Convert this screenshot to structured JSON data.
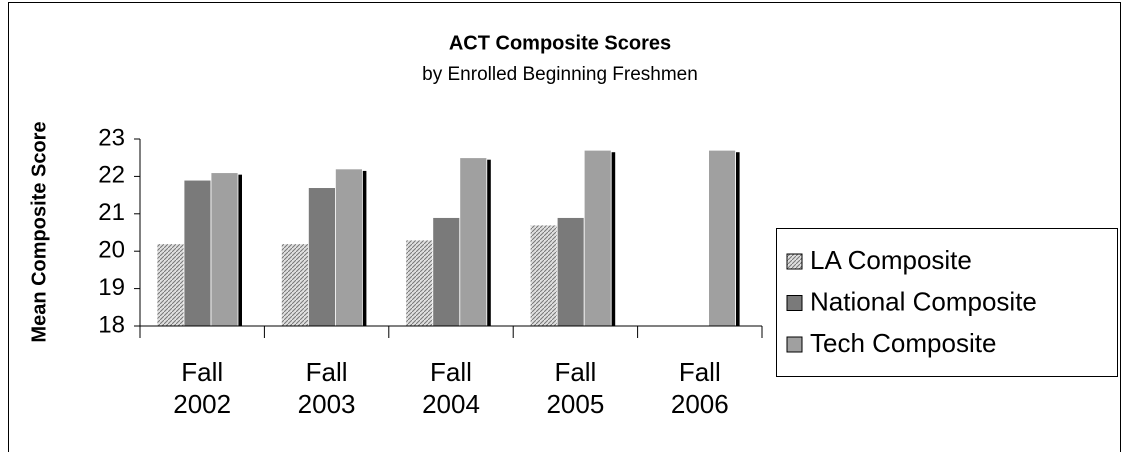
{
  "chart_data": {
    "type": "bar",
    "title": "ACT Composite Scores",
    "subtitle": "by Enrolled Beginning Freshmen",
    "y_label": "Mean Composite Score",
    "categories": [
      "Fall 2002",
      "Fall 2003",
      "Fall 2004",
      "Fall 2005",
      "Fall 2006"
    ],
    "series": [
      {
        "name": "LA Composite",
        "color": "#c8c8c8",
        "values": [
          20.2,
          20.2,
          20.3,
          20.7,
          null
        ]
      },
      {
        "name": "National Composite",
        "color": "#7a7a7a",
        "values": [
          21.9,
          21.7,
          20.9,
          20.9,
          null
        ]
      },
      {
        "name": "Tech Composite",
        "color": "#a0a0a0",
        "values": [
          22.1,
          22.2,
          22.5,
          22.7,
          22.7
        ]
      }
    ],
    "ylim": [
      18,
      23
    ],
    "yticks": [
      18,
      19,
      20,
      21,
      22,
      23
    ],
    "grid": false,
    "legend": "right"
  }
}
